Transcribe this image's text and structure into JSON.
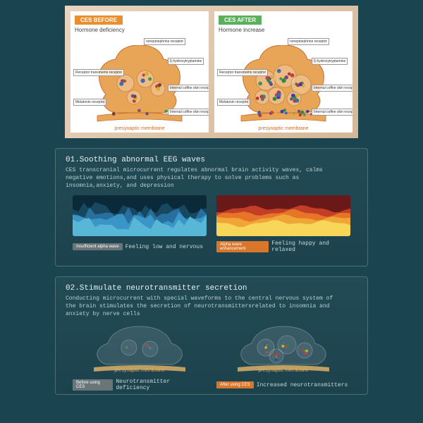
{
  "colors": {
    "bg": "#1a4550",
    "synapse_fill": "#e8a558",
    "synapse_stroke": "#c97030",
    "dot_palettes": {
      "sparse": [
        "#6b4a8a",
        "#3a6bb5",
        "#4a9050",
        "#c94040",
        "#d8b030",
        "#7a4030"
      ],
      "dense": [
        "#3a3ab5",
        "#3a6bb5",
        "#4a9050",
        "#c94040",
        "#d8b030",
        "#6b4a8a",
        "#2a8a40",
        "#b53a3a"
      ]
    }
  },
  "top": {
    "before": {
      "badge": "CES BEFORE",
      "subtitle": "Hormone deficiency",
      "cleft": "presynaptic membrane",
      "callouts": [
        "norepinephrine receptor",
        "5-hydroxytryptamine",
        "Receptor transmems receptor",
        "Internal coffee skin receptor",
        "Melatonin receptor",
        "Internal coffee skin receptor"
      ]
    },
    "after": {
      "badge": "CES AFTER",
      "subtitle": "Hormone increase",
      "cleft": "presynaptic membrane",
      "callouts": [
        "norepinephrine receptor",
        "5-hydroxytryptamine",
        "Receptor transmems receptor",
        "Internal coffee skin receptor",
        "Melatonin receptor",
        "Internal coffee skin receptor"
      ]
    }
  },
  "section1": {
    "title": "01.Soothing abnormal EEG waves",
    "desc": "CES transcranial microcurrent regulates abnormal brain activity waves, calms negative emotions,and uses physical therapy to solve problems such as insomnia,anxiety, and depression",
    "left": {
      "wave_colors": [
        "#0a2a3a",
        "#184a62",
        "#2a72a0",
        "#3a98c8",
        "#5ab8d8"
      ],
      "pill": "Insufficient alpha wave",
      "caption": "Feeling low and nervous"
    },
    "right": {
      "wave_colors": [
        "#6a1818",
        "#c84028",
        "#e87828",
        "#f0a838",
        "#f8d858"
      ],
      "pill": "Alpha wave enhancement",
      "caption": "Feeling happy and relaxed"
    }
  },
  "section2": {
    "title": "02.Stimulate neurotransmitter secretion",
    "desc": "Conducting microcurrent with special waveforms to the central nervous system of the brain stimulates the secretion of neurotransmittersrelated to insomnia and anxiety by nerve cells",
    "left": {
      "label": "presynaptic membrane",
      "pill": "Before using CES",
      "caption": "Neurotransmitter deficiency"
    },
    "right": {
      "label": "presynaptic membrane",
      "pill": "After using CES",
      "caption": "Increased neurotransmitters"
    }
  }
}
